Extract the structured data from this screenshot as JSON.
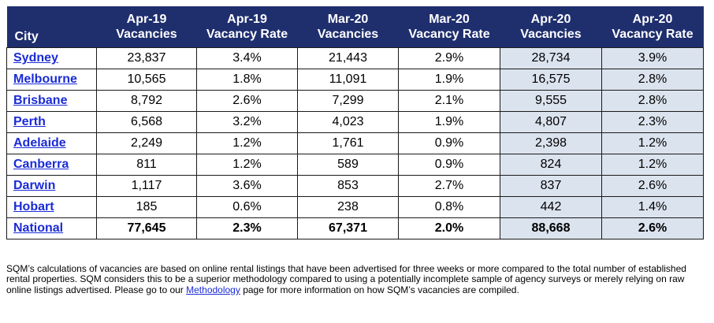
{
  "header": {
    "city": "City",
    "cols": [
      {
        "line1": "Apr-19",
        "line2": "Vacancies"
      },
      {
        "line1": "Apr-19",
        "line2": "Vacancy Rate"
      },
      {
        "line1": "Mar-20",
        "line2": "Vacancies"
      },
      {
        "line1": "Mar-20",
        "line2": "Vacancy Rate"
      },
      {
        "line1": "Apr-20",
        "line2": "Vacancies"
      },
      {
        "line1": "Apr-20",
        "line2": "Vacancy Rate"
      }
    ]
  },
  "rows": [
    {
      "city": "Sydney",
      "v": [
        "23,837",
        "3.4%",
        "21,443",
        "2.9%",
        "28,734",
        "3.9%"
      ]
    },
    {
      "city": "Melbourne",
      "v": [
        "10,565",
        "1.8%",
        "11,091",
        "1.9%",
        "16,575",
        "2.8%"
      ]
    },
    {
      "city": "Brisbane",
      "v": [
        "8,792",
        "2.6%",
        "7,299",
        "2.1%",
        "9,555",
        "2.8%"
      ]
    },
    {
      "city": "Perth",
      "v": [
        "6,568",
        "3.2%",
        "4,023",
        "1.9%",
        "4,807",
        "2.3%"
      ]
    },
    {
      "city": "Adelaide",
      "v": [
        "2,249",
        "1.2%",
        "1,761",
        "0.9%",
        "2,398",
        "1.2%"
      ]
    },
    {
      "city": "Canberra",
      "v": [
        "811",
        "1.2%",
        "589",
        "0.9%",
        "824",
        "1.2%"
      ]
    },
    {
      "city": "Darwin",
      "v": [
        "1,117",
        "3.6%",
        "853",
        "2.7%",
        "837",
        "2.6%"
      ]
    },
    {
      "city": "Hobart",
      "v": [
        "185",
        "0.6%",
        "238",
        "0.8%",
        "442",
        "1.4%"
      ]
    },
    {
      "city": "National",
      "v": [
        "77,645",
        "2.3%",
        "67,371",
        "2.0%",
        "88,668",
        "2.6%"
      ]
    }
  ],
  "footnote": {
    "before": "SQM’s calculations of vacancies are based on online rental listings that have been advertised for three weeks or more compared to the total number of established rental properties. SQM considers this to be a superior methodology compared to using a potentially incomplete sample of agency surveys or merely relying on raw online listings advertised. Please go to our ",
    "link": "Methodology",
    "after": " page for more information on how SQM’s vacancies are compiled."
  },
  "colors": {
    "header_bg": "#1f2f6e",
    "highlight_bg": "#dbe3ee",
    "link": "#1a2bd6"
  }
}
